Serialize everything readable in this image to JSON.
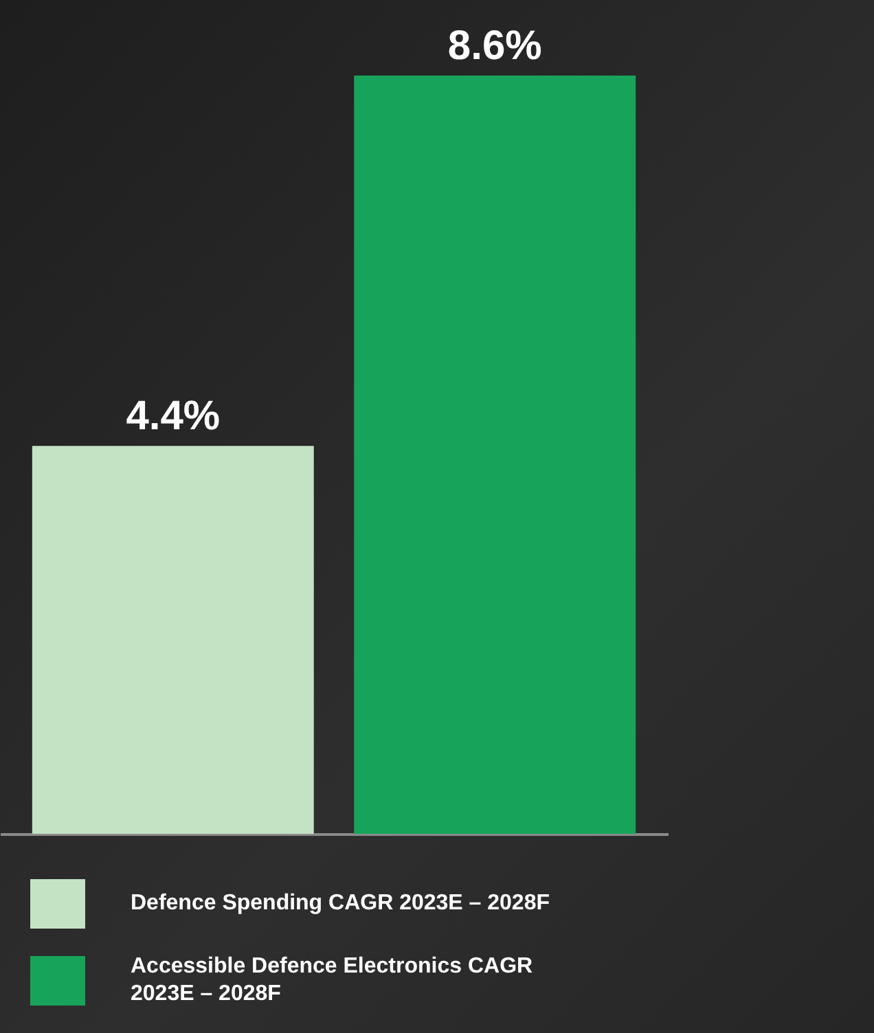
{
  "chart_data": {
    "type": "bar",
    "categories": [
      null,
      null
    ],
    "series": [
      {
        "name": "Defence Spending CAGR 2023E – 2028F",
        "color": "#c4e3c5",
        "values": [
          4.4,
          null
        ],
        "value_labels": [
          "4.4%",
          null
        ]
      },
      {
        "name": "Accessible Defence Electronics CAGR 2023E – 2028F",
        "color": "#17a45a",
        "values": [
          null,
          8.6
        ],
        "value_labels": [
          null,
          "8.6%"
        ]
      }
    ],
    "legend": "bottom",
    "stacked": true
  }
}
